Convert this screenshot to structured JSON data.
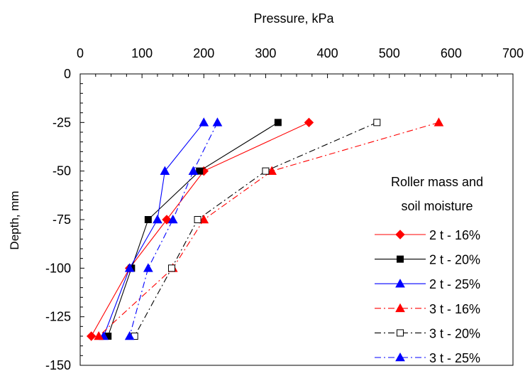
{
  "chart_data": {
    "type": "line",
    "title": "",
    "xlabel": "Pressure, kPa",
    "ylabel": "Depth, mm",
    "xlim": [
      0,
      700
    ],
    "ylim": [
      -150,
      0
    ],
    "x_ticks": [
      "0",
      "100",
      "200",
      "300",
      "400",
      "500",
      "600",
      "700"
    ],
    "y_ticks": [
      "0",
      "-25",
      "-50",
      "-75",
      "-100",
      "-125",
      "-150"
    ],
    "x_axis_position": "top",
    "grid": false,
    "legend": {
      "title_line1": "Roller mass and",
      "title_line2": "soil moisture",
      "placement": "right"
    },
    "series": [
      {
        "name": "2 t - 16%",
        "color": "#ff0000",
        "marker": "diamond",
        "filled": true,
        "dash": "solid",
        "points": [
          [
            370,
            -25
          ],
          [
            200,
            -50
          ],
          [
            140,
            -75
          ],
          [
            80,
            -100
          ],
          [
            18,
            -135
          ]
        ]
      },
      {
        "name": "2 t - 20%",
        "color": "#000000",
        "marker": "square",
        "filled": true,
        "dash": "solid",
        "points": [
          [
            320,
            -25
          ],
          [
            193,
            -50
          ],
          [
            110,
            -75
          ],
          [
            83,
            -100
          ],
          [
            45,
            -135
          ]
        ]
      },
      {
        "name": "2 t - 25%",
        "color": "#0000ff",
        "marker": "triangle",
        "filled": true,
        "dash": "solid",
        "points": [
          [
            200,
            -25
          ],
          [
            137,
            -50
          ],
          [
            125,
            -75
          ],
          [
            80,
            -100
          ],
          [
            38,
            -135
          ]
        ]
      },
      {
        "name": "3 t - 16%",
        "color": "#ff0000",
        "marker": "triangle",
        "filled": true,
        "dash": "dashdot",
        "points": [
          [
            580,
            -25
          ],
          [
            310,
            -50
          ],
          [
            200,
            -75
          ],
          [
            150,
            -100
          ],
          [
            30,
            -135
          ]
        ]
      },
      {
        "name": "3 t - 20%",
        "color": "#000000",
        "marker": "square",
        "filled": false,
        "dash": "dashdot",
        "points": [
          [
            480,
            -25
          ],
          [
            300,
            -50
          ],
          [
            190,
            -75
          ],
          [
            148,
            -100
          ],
          [
            88,
            -135
          ]
        ]
      },
      {
        "name": "3 t - 25%",
        "color": "#0000ff",
        "marker": "triangle",
        "filled": true,
        "dash": "dashdot",
        "points": [
          [
            222,
            -25
          ],
          [
            183,
            -50
          ],
          [
            150,
            -75
          ],
          [
            110,
            -100
          ],
          [
            80,
            -135
          ]
        ]
      }
    ]
  }
}
